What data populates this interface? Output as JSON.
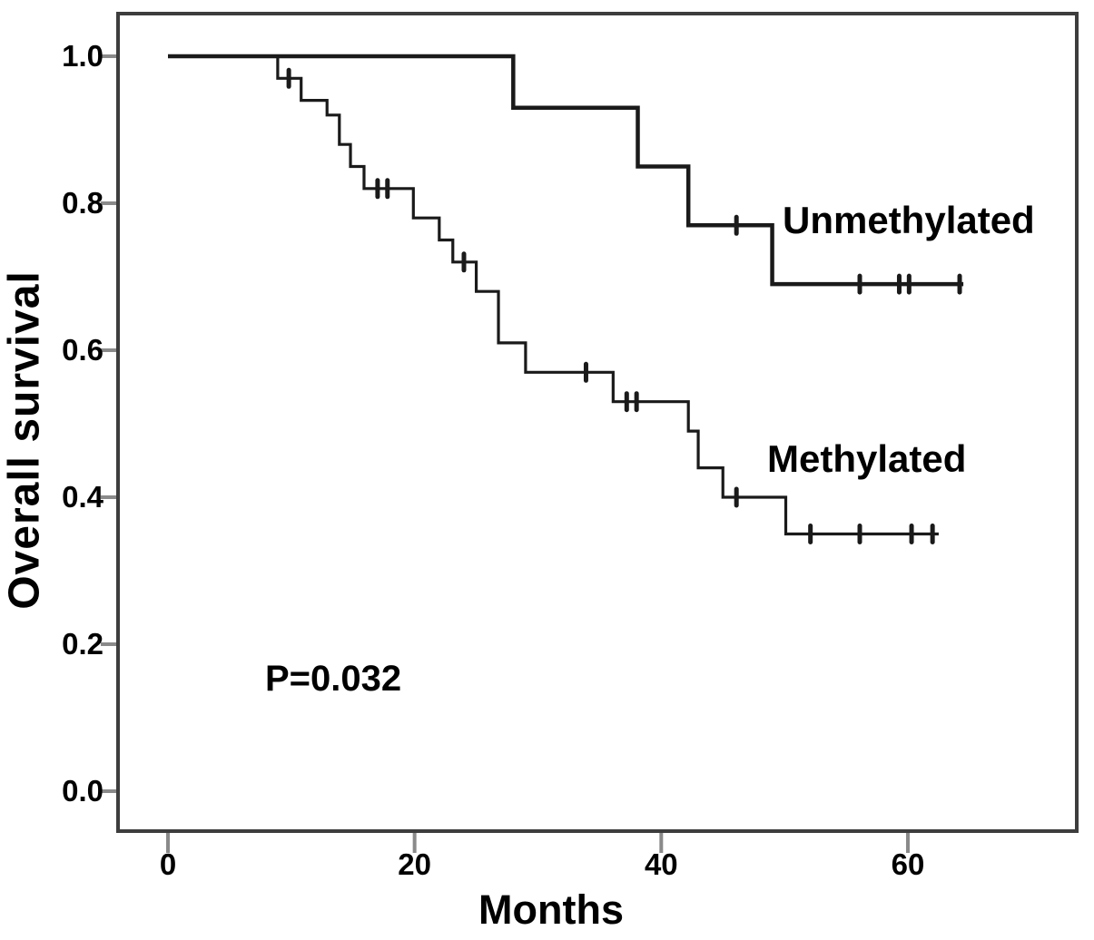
{
  "figure": {
    "background": "#ffffff"
  },
  "chart_data": {
    "type": "line",
    "subtype": "kaplan-meier-step-curve",
    "title": "",
    "xlabel": "Months",
    "ylabel": "Overall survival",
    "annotation": "P=0.032",
    "grid": false,
    "legend_position": "inline-labels-on-plot",
    "xlim": [
      -4,
      74
    ],
    "ylim": [
      -0.06,
      1.06
    ],
    "x_ticks": [
      0,
      20,
      40,
      60
    ],
    "x_tick_labels": [
      "0",
      "20",
      "40",
      "60"
    ],
    "y_ticks": [
      1.0,
      0.8,
      0.6,
      0.4,
      0.2,
      0.0
    ],
    "y_tick_labels": [
      "1.0",
      "0.8",
      "0.6",
      "0.4",
      "0.2",
      "0.0"
    ],
    "colors": {
      "curve": "#1a1a1a",
      "frame": "#3d3d3d",
      "tick": "#8a8a8a",
      "text": "#000000"
    },
    "series": [
      {
        "name": "Unmethylated",
        "steps": [
          [
            0,
            1.0
          ],
          [
            28,
            0.93
          ],
          [
            38.1,
            0.85
          ],
          [
            42.2,
            0.77
          ],
          [
            49,
            0.69
          ]
        ],
        "end_time": 64.5,
        "censors": [
          [
            46.1,
            0.77
          ],
          [
            56.1,
            0.69
          ],
          [
            59.3,
            0.69
          ],
          [
            60.1,
            0.69
          ],
          [
            64.2,
            0.69
          ]
        ]
      },
      {
        "name": "Methylated",
        "steps": [
          [
            0,
            1.0
          ],
          [
            8.9,
            0.97
          ],
          [
            10.8,
            0.94
          ],
          [
            12.9,
            0.92
          ],
          [
            13.9,
            0.88
          ],
          [
            14.8,
            0.85
          ],
          [
            15.9,
            0.82
          ],
          [
            19.9,
            0.78
          ],
          [
            22,
            0.75
          ],
          [
            23.1,
            0.72
          ],
          [
            25,
            0.68
          ],
          [
            26.8,
            0.61
          ],
          [
            29,
            0.57
          ],
          [
            36.1,
            0.53
          ],
          [
            42.2,
            0.49
          ],
          [
            43,
            0.44
          ],
          [
            45,
            0.4
          ],
          [
            50.1,
            0.35
          ]
        ],
        "end_time": 62.5,
        "censors": [
          [
            9.8,
            0.97
          ],
          [
            17,
            0.82
          ],
          [
            17.8,
            0.82
          ],
          [
            24,
            0.72
          ],
          [
            33.9,
            0.57
          ],
          [
            37.2,
            0.53
          ],
          [
            38,
            0.53
          ],
          [
            46.1,
            0.4
          ],
          [
            52.1,
            0.35
          ],
          [
            56.1,
            0.35
          ],
          [
            60.3,
            0.35
          ],
          [
            62,
            0.35
          ]
        ]
      }
    ]
  }
}
